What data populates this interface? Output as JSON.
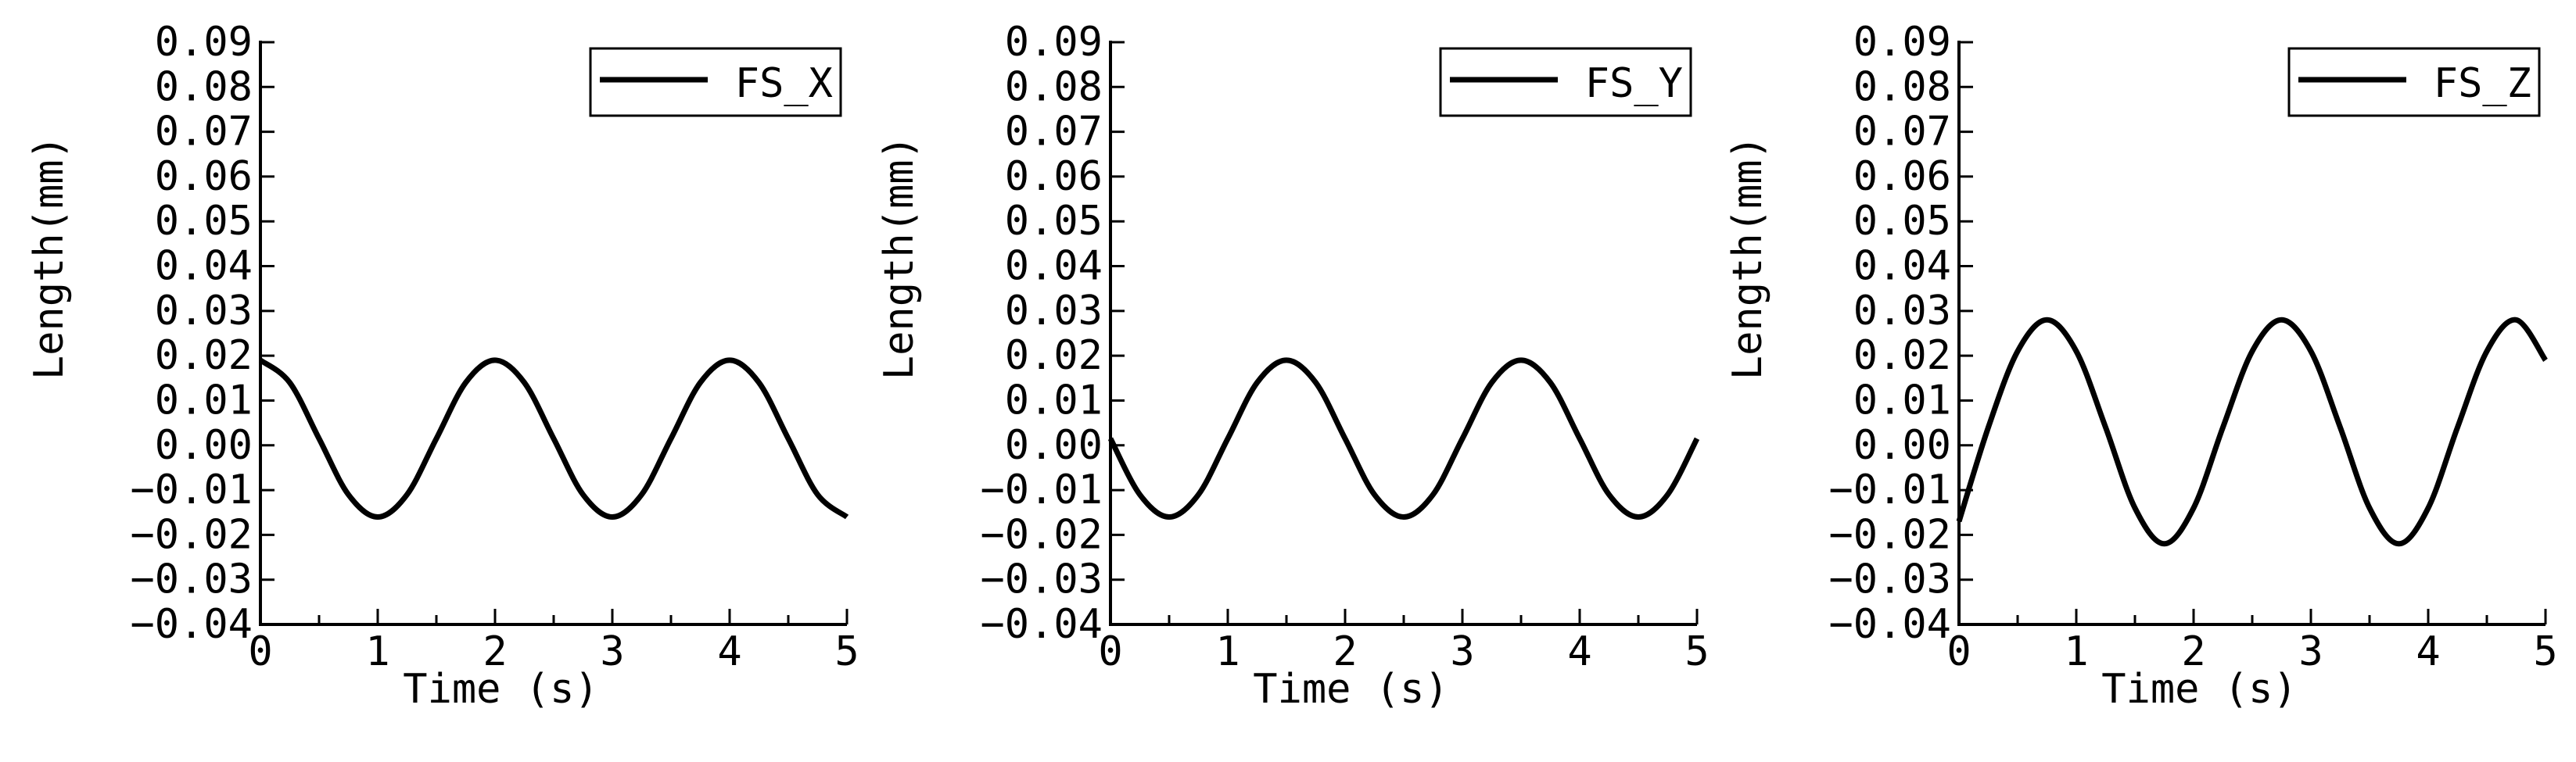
{
  "colors": {
    "line": "#000000",
    "axis": "#000000",
    "background": "#ffffff"
  },
  "chart_data": [
    {
      "type": "line",
      "xlabel": "Time (s)",
      "ylabel": "Length(mm)",
      "xlim": [
        0,
        5
      ],
      "ylim": [
        -0.04,
        0.09
      ],
      "xticks": [
        "0",
        "1",
        "2",
        "3",
        "4",
        "5"
      ],
      "yticks": [
        "-0.04",
        "-0.03",
        "-0.02",
        "-0.01",
        "0.00",
        "0.01",
        "0.02",
        "0.03",
        "0.04",
        "0.05",
        "0.06",
        "0.07",
        "0.08",
        "0.09"
      ],
      "grid": false,
      "legend_position": "top-right",
      "series": [
        {
          "name": "FS_X",
          "x": [
            0,
            0.25,
            0.5,
            0.75,
            1.0,
            1.25,
            1.5,
            1.75,
            2.0,
            2.25,
            2.5,
            2.75,
            3.0,
            3.25,
            3.5,
            3.75,
            4.0,
            4.25,
            4.5,
            4.75,
            5.0
          ],
          "y": [
            0.019,
            0.014,
            0.0015,
            -0.011,
            -0.016,
            -0.011,
            0.0015,
            0.014,
            0.019,
            0.014,
            0.0015,
            -0.011,
            -0.016,
            -0.011,
            0.0015,
            0.014,
            0.019,
            0.014,
            0.0015,
            -0.011,
            -0.016
          ]
        }
      ]
    },
    {
      "type": "line",
      "xlabel": "Time (s)",
      "ylabel": "Length(mm)",
      "xlim": [
        0,
        5
      ],
      "ylim": [
        -0.04,
        0.09
      ],
      "xticks": [
        "0",
        "1",
        "2",
        "3",
        "4",
        "5"
      ],
      "yticks": [
        "-0.04",
        "-0.03",
        "-0.02",
        "-0.01",
        "0.00",
        "0.01",
        "0.02",
        "0.03",
        "0.04",
        "0.05",
        "0.06",
        "0.07",
        "0.08",
        "0.09"
      ],
      "grid": false,
      "legend_position": "top-right",
      "series": [
        {
          "name": "FS_Y",
          "x": [
            0,
            0.25,
            0.5,
            0.75,
            1.0,
            1.25,
            1.5,
            1.75,
            2.0,
            2.25,
            2.5,
            2.75,
            3.0,
            3.25,
            3.5,
            3.75,
            4.0,
            4.25,
            4.5,
            4.75,
            5.0
          ],
          "y": [
            0.0015,
            -0.011,
            -0.016,
            -0.011,
            0.0015,
            0.014,
            0.019,
            0.014,
            0.0015,
            -0.011,
            -0.016,
            -0.011,
            0.0015,
            0.014,
            0.019,
            0.014,
            0.0015,
            -0.011,
            -0.016,
            -0.011,
            0.0015
          ]
        }
      ]
    },
    {
      "type": "line",
      "xlabel": "Time (s)",
      "ylabel": "Length(mm)",
      "xlim": [
        0,
        5
      ],
      "ylim": [
        -0.04,
        0.09
      ],
      "xticks": [
        "0",
        "1",
        "2",
        "3",
        "4",
        "5"
      ],
      "yticks": [
        "-0.04",
        "-0.03",
        "-0.02",
        "-0.01",
        "0.00",
        "0.01",
        "0.02",
        "0.03",
        "0.04",
        "0.05",
        "0.06",
        "0.07",
        "0.08",
        "0.09"
      ],
      "grid": false,
      "legend_position": "top-right",
      "series": [
        {
          "name": "FS_Z",
          "x": [
            0,
            0.25,
            0.5,
            0.75,
            1.0,
            1.25,
            1.5,
            1.75,
            2.0,
            2.25,
            2.5,
            2.75,
            3.0,
            3.25,
            3.5,
            3.75,
            4.0,
            4.25,
            4.5,
            4.75,
            5.0
          ],
          "y": [
            -0.017,
            0.004,
            0.021,
            0.028,
            0.021,
            0.004,
            -0.014,
            -0.022,
            -0.014,
            0.004,
            0.021,
            0.028,
            0.021,
            0.004,
            -0.014,
            -0.022,
            -0.014,
            0.004,
            0.021,
            0.028,
            0.019
          ]
        }
      ]
    }
  ]
}
